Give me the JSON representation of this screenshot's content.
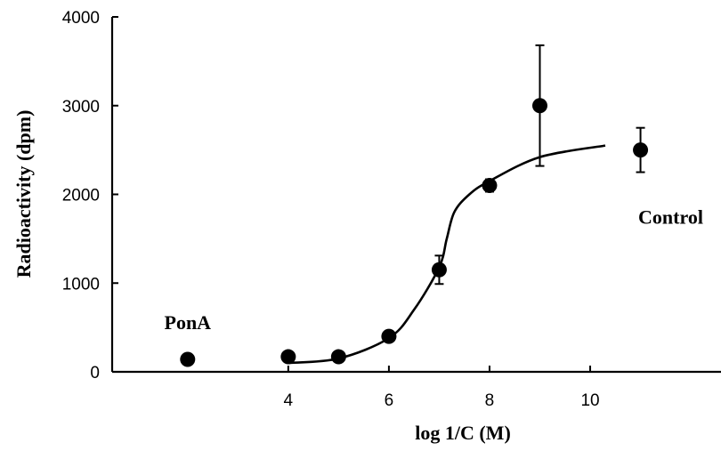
{
  "chart_data": {
    "type": "scatter",
    "xlabel": "log 1/C (M)",
    "ylabel": "Radioactivity (dpm)",
    "xlim": [
      0.5,
      12.6
    ],
    "ylim": [
      0,
      4000
    ],
    "x_ticks": [
      4,
      6,
      8,
      10
    ],
    "y_ticks": [
      0,
      1000,
      2000,
      3000,
      4000
    ],
    "x_tick_labels": [
      "4",
      "6",
      "8",
      "10"
    ],
    "y_tick_labels": [
      "0",
      "1000",
      "2000",
      "3000",
      "4000"
    ],
    "grid": false,
    "points": [
      {
        "x": 2.0,
        "y": 140,
        "err": 0
      },
      {
        "x": 4,
        "y": 170,
        "err": 0
      },
      {
        "x": 5,
        "y": 170,
        "err": 0
      },
      {
        "x": 6,
        "y": 400,
        "err": 40
      },
      {
        "x": 7,
        "y": 1150,
        "err": 160
      },
      {
        "x": 8,
        "y": 2100,
        "err": 70
      },
      {
        "x": 9,
        "y": 3000,
        "err": 680
      },
      {
        "x": 11,
        "y": 2500,
        "err": 250
      }
    ],
    "fit_curve": {
      "x": [
        4.0,
        5.0,
        6.0,
        6.5,
        7.0,
        7.15,
        7.3,
        7.6,
        8.0,
        9.0,
        10.3
      ],
      "y": [
        100,
        150,
        380,
        700,
        1180,
        1500,
        1800,
        2000,
        2150,
        2420,
        2550
      ]
    },
    "annotations": [
      {
        "text": "PonA",
        "x": 2.0,
        "y": 560
      },
      {
        "text": "Control",
        "x": 11.6,
        "y": 1750
      }
    ]
  }
}
